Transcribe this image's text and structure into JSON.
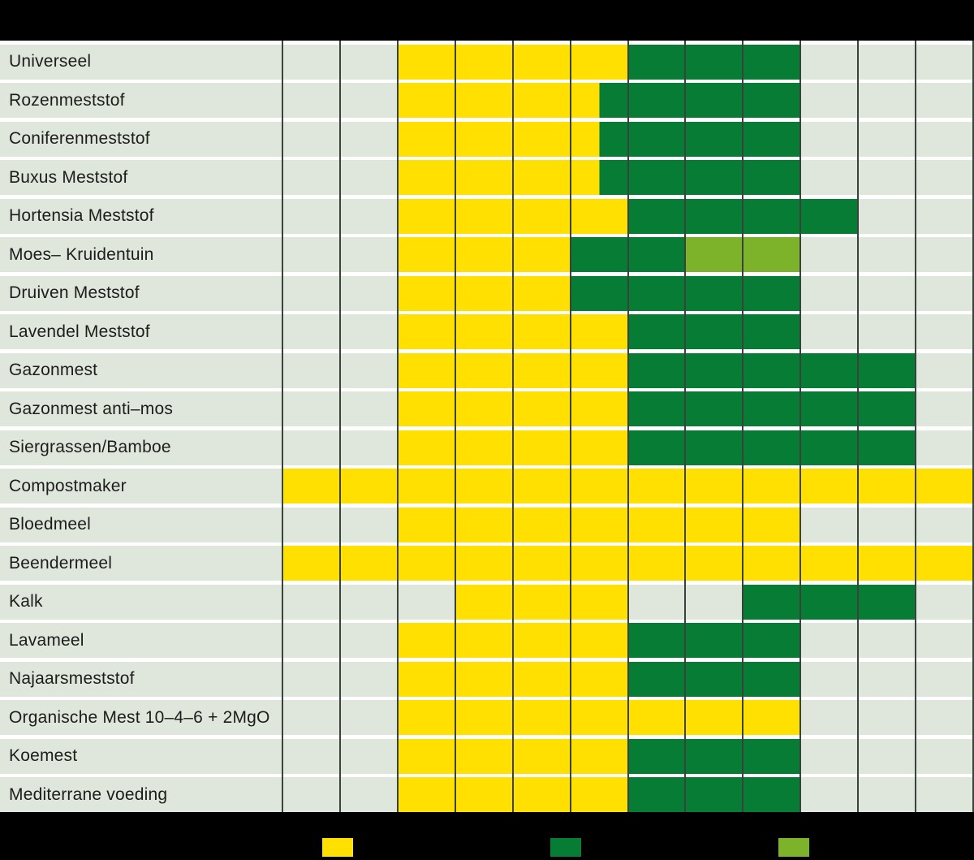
{
  "colors": {
    "yellow": "#FFE000",
    "dark_green": "#077C35",
    "light_green": "#7DB22B",
    "empty_cell": "#DFE7DD",
    "grid_line": "#3A423C",
    "label_text": "#1D1D1B",
    "band_black": "#000000",
    "row_gap_white": "#FFFFFF"
  },
  "chart_data": {
    "type": "heatmap",
    "n_columns": 12,
    "legend_position": "bottom",
    "grid": "on",
    "cell_codes": {
      "": "empty",
      "Y": "yellow",
      "G": "dark-green",
      "LG": "light-green",
      "Y/G": "left half yellow, right half dark-green"
    },
    "rows": [
      {
        "label": "Universeel",
        "cells": [
          "",
          "",
          "Y",
          "Y",
          "Y",
          "Y",
          "G",
          "G",
          "G",
          "",
          "",
          ""
        ]
      },
      {
        "label": "Rozenmeststof",
        "cells": [
          "",
          "",
          "Y",
          "Y",
          "Y",
          "Y/G",
          "G",
          "G",
          "G",
          "",
          "",
          ""
        ]
      },
      {
        "label": "Coniferenmeststof",
        "cells": [
          "",
          "",
          "Y",
          "Y",
          "Y",
          "Y/G",
          "G",
          "G",
          "G",
          "",
          "",
          ""
        ]
      },
      {
        "label": "Buxus Meststof",
        "cells": [
          "",
          "",
          "Y",
          "Y",
          "Y",
          "Y/G",
          "G",
          "G",
          "G",
          "",
          "",
          ""
        ]
      },
      {
        "label": "Hortensia Meststof",
        "cells": [
          "",
          "",
          "Y",
          "Y",
          "Y",
          "Y",
          "G",
          "G",
          "G",
          "G",
          "",
          ""
        ]
      },
      {
        "label": "Moes– Kruidentuin",
        "cells": [
          "",
          "",
          "Y",
          "Y",
          "Y",
          "G",
          "G",
          "LG",
          "LG",
          "",
          "",
          ""
        ]
      },
      {
        "label": "Druiven Meststof",
        "cells": [
          "",
          "",
          "Y",
          "Y",
          "Y",
          "G",
          "G",
          "G",
          "G",
          "",
          "",
          ""
        ]
      },
      {
        "label": "Lavendel Meststof",
        "cells": [
          "",
          "",
          "Y",
          "Y",
          "Y",
          "Y",
          "G",
          "G",
          "G",
          "",
          "",
          ""
        ]
      },
      {
        "label": "Gazonmest",
        "cells": [
          "",
          "",
          "Y",
          "Y",
          "Y",
          "Y",
          "G",
          "G",
          "G",
          "G",
          "G",
          ""
        ]
      },
      {
        "label": "Gazonmest anti–mos",
        "cells": [
          "",
          "",
          "Y",
          "Y",
          "Y",
          "Y",
          "G",
          "G",
          "G",
          "G",
          "G",
          ""
        ]
      },
      {
        "label": "Siergrassen/Bamboe",
        "cells": [
          "",
          "",
          "Y",
          "Y",
          "Y",
          "Y",
          "G",
          "G",
          "G",
          "G",
          "G",
          ""
        ]
      },
      {
        "label": "Compostmaker",
        "cells": [
          "Y",
          "Y",
          "Y",
          "Y",
          "Y",
          "Y",
          "Y",
          "Y",
          "Y",
          "Y",
          "Y",
          "Y"
        ]
      },
      {
        "label": "Bloedmeel",
        "cells": [
          "",
          "",
          "Y",
          "Y",
          "Y",
          "Y",
          "Y",
          "Y",
          "Y",
          "",
          "",
          ""
        ]
      },
      {
        "label": "Beendermeel",
        "cells": [
          "Y",
          "Y",
          "Y",
          "Y",
          "Y",
          "Y",
          "Y",
          "Y",
          "Y",
          "Y",
          "Y",
          "Y"
        ]
      },
      {
        "label": "Kalk",
        "cells": [
          "",
          "",
          "",
          "Y",
          "Y",
          "Y",
          "",
          "",
          "G",
          "G",
          "G",
          ""
        ]
      },
      {
        "label": "Lavameel",
        "cells": [
          "",
          "",
          "Y",
          "Y",
          "Y",
          "Y",
          "G",
          "G",
          "G",
          "",
          "",
          ""
        ]
      },
      {
        "label": "Najaarsmeststof",
        "cells": [
          "",
          "",
          "Y",
          "Y",
          "Y",
          "Y",
          "G",
          "G",
          "G",
          "",
          "",
          ""
        ]
      },
      {
        "label": "Organische Mest 10–4–6 + 2MgO",
        "cells": [
          "",
          "",
          "Y",
          "Y",
          "Y",
          "Y",
          "Y",
          "Y",
          "Y",
          "",
          "",
          ""
        ]
      },
      {
        "label": "Koemest",
        "cells": [
          "",
          "",
          "Y",
          "Y",
          "Y",
          "Y",
          "G",
          "G",
          "G",
          "",
          "",
          ""
        ]
      },
      {
        "label": "Mediterrane voeding",
        "cells": [
          "",
          "",
          "Y",
          "Y",
          "Y",
          "Y",
          "G",
          "G",
          "G",
          "",
          "",
          ""
        ]
      }
    ]
  },
  "legend": {
    "items": [
      {
        "name": "yellow-swatch",
        "color": "#FFE000"
      },
      {
        "name": "dark-green-swatch",
        "color": "#077C35"
      },
      {
        "name": "light-green-swatch",
        "color": "#7DB22B"
      }
    ]
  }
}
